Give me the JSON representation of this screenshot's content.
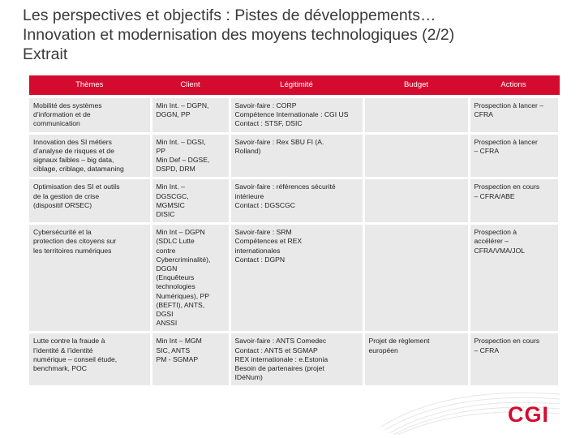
{
  "title": {
    "line1": "Les perspectives et objectifs : Pistes de développements…",
    "line2": "Innovation et modernisation des moyens technologiques (2/2)",
    "line3": "Extrait"
  },
  "table": {
    "headers": [
      "Thèmes",
      "Client",
      "Légitimité",
      "Budget",
      "Actions"
    ],
    "rows": [
      {
        "theme": [
          "Mobilité des systèmes",
          "d’information et de",
          "communication"
        ],
        "client": [
          "Min Int. – DGPN,",
          "DGGN, PP"
        ],
        "legitimite": [
          "Savoir-faire : CORP",
          "Compétence Internationale : CGI US",
          "Contact : STSF, DSIC"
        ],
        "budget": [],
        "actions": [
          "Prospection à lancer –",
          "CFRA"
        ]
      },
      {
        "theme": [
          "Innovation des SI métiers",
          "d’analyse de risques et de",
          "signaux faibles – big data,",
          "ciblage, criblage, datamaning"
        ],
        "client": [
          "Min Int. – DGSI,",
          "PP",
          "Min Def – DGSE,",
          "DSPD, DRM"
        ],
        "legitimite": [
          "Savoir-faire : Rex SBU FI (A.",
          "Rolland)"
        ],
        "budget": [],
        "actions": [
          "Prospection à lancer",
          "– CFRA"
        ]
      },
      {
        "theme": [
          "Optimisation des SI et outils",
          "de la gestion de crise",
          "(dispositif ORSEC)"
        ],
        "client": [
          "Min Int. –",
          "DGSCGC,",
          "MGMSIC",
          "DISIC"
        ],
        "legitimite": [
          "Savoir-faire : références sécurité",
          "intérieure",
          "Contact : DGSCGC"
        ],
        "budget": [],
        "actions": [
          "Prospection en cours",
          "– CFRA/ABE"
        ]
      },
      {
        "theme": [
          "Cybersécurité et la",
          "protection des citoyens sur",
          "les territoires numériques"
        ],
        "client": [
          "Min Int – DGPN",
          "(SDLC Lutte",
          "contre",
          "Cybercriminalité),",
          "DGGN",
          "(Enquêteurs",
          "technologies",
          "Numériques), PP",
          "(BEFTI), ANTS,",
          "DGSI",
          "ANSSI"
        ],
        "legitimite": [
          "Savoir-faire : SRM",
          "Compétences et REX",
          "internationales",
          "Contact : DGPN"
        ],
        "budget": [],
        "actions": [
          "Prospection à",
          "accélérer –",
          "CFRA/VMA/JOL"
        ]
      },
      {
        "theme": [
          "Lutte contre la fraude à",
          "l’identité & l’identité",
          "numérique – conseil étude,",
          "benchmark, POC"
        ],
        "client": [
          "Min Int – MGM",
          "SIC, ANTS",
          "PM - SGMAP"
        ],
        "legitimite": [
          "Savoir-faire : ANTS Comedec",
          "Contact : ANTS et SGMAP",
          "REX internationale : e.Estonia",
          "Besoin de partenaires (projet",
          "IDéNum)"
        ],
        "budget": [
          "Projet de règlement",
          "européen"
        ],
        "actions": [
          "Prospection en cours",
          "– CFRA"
        ]
      }
    ]
  },
  "logo": {
    "text": "CGI",
    "color": "#d40b2f"
  },
  "colors": {
    "header_bg": "#d40b2f",
    "cell_bg": "#e9e9ea",
    "title": "#3a3a3a"
  }
}
